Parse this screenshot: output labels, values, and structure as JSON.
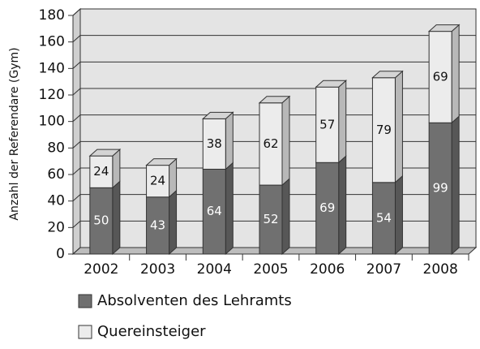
{
  "chart_data": {
    "type": "bar",
    "stacked": true,
    "ylabel": "Anzahl der Referendare (Gym)",
    "categories": [
      "2002",
      "2003",
      "2004",
      "2005",
      "2006",
      "2007",
      "2008"
    ],
    "series": [
      {
        "name": "Absolventen des Lehramts",
        "color": "#707070",
        "values": [
          50,
          43,
          64,
          52,
          69,
          54,
          99
        ]
      },
      {
        "name": "Quereinsteiger",
        "color": "#ececec",
        "values": [
          24,
          24,
          38,
          62,
          57,
          79,
          69
        ]
      }
    ],
    "ylim": [
      0,
      180
    ],
    "yticks": [
      0,
      20,
      40,
      60,
      80,
      100,
      120,
      140,
      160,
      180
    ],
    "grid": true
  }
}
